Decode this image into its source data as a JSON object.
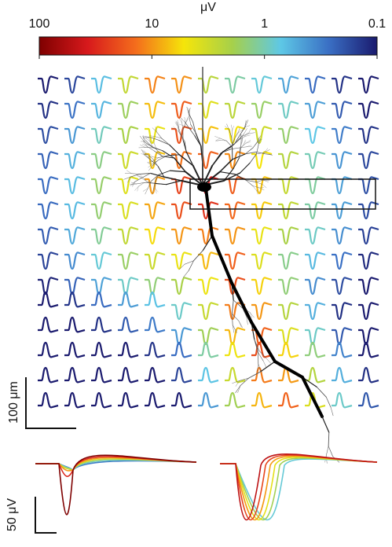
{
  "chart_data": {
    "type": "waveform-map",
    "colorbar": {
      "label": "μV",
      "log": true,
      "lim": [
        100,
        0.1
      ],
      "ticks": [
        100,
        10,
        1,
        0.1
      ],
      "colors": [
        "#7f0000",
        "#d7191c",
        "#f46d1c",
        "#f5e50a",
        "#a6d04a",
        "#5ec8e6",
        "#3a6fc4",
        "#1a1a6e"
      ]
    },
    "scalebars": [
      {
        "label": "100 μm"
      },
      {
        "label": "50 μV"
      }
    ]
  }
}
